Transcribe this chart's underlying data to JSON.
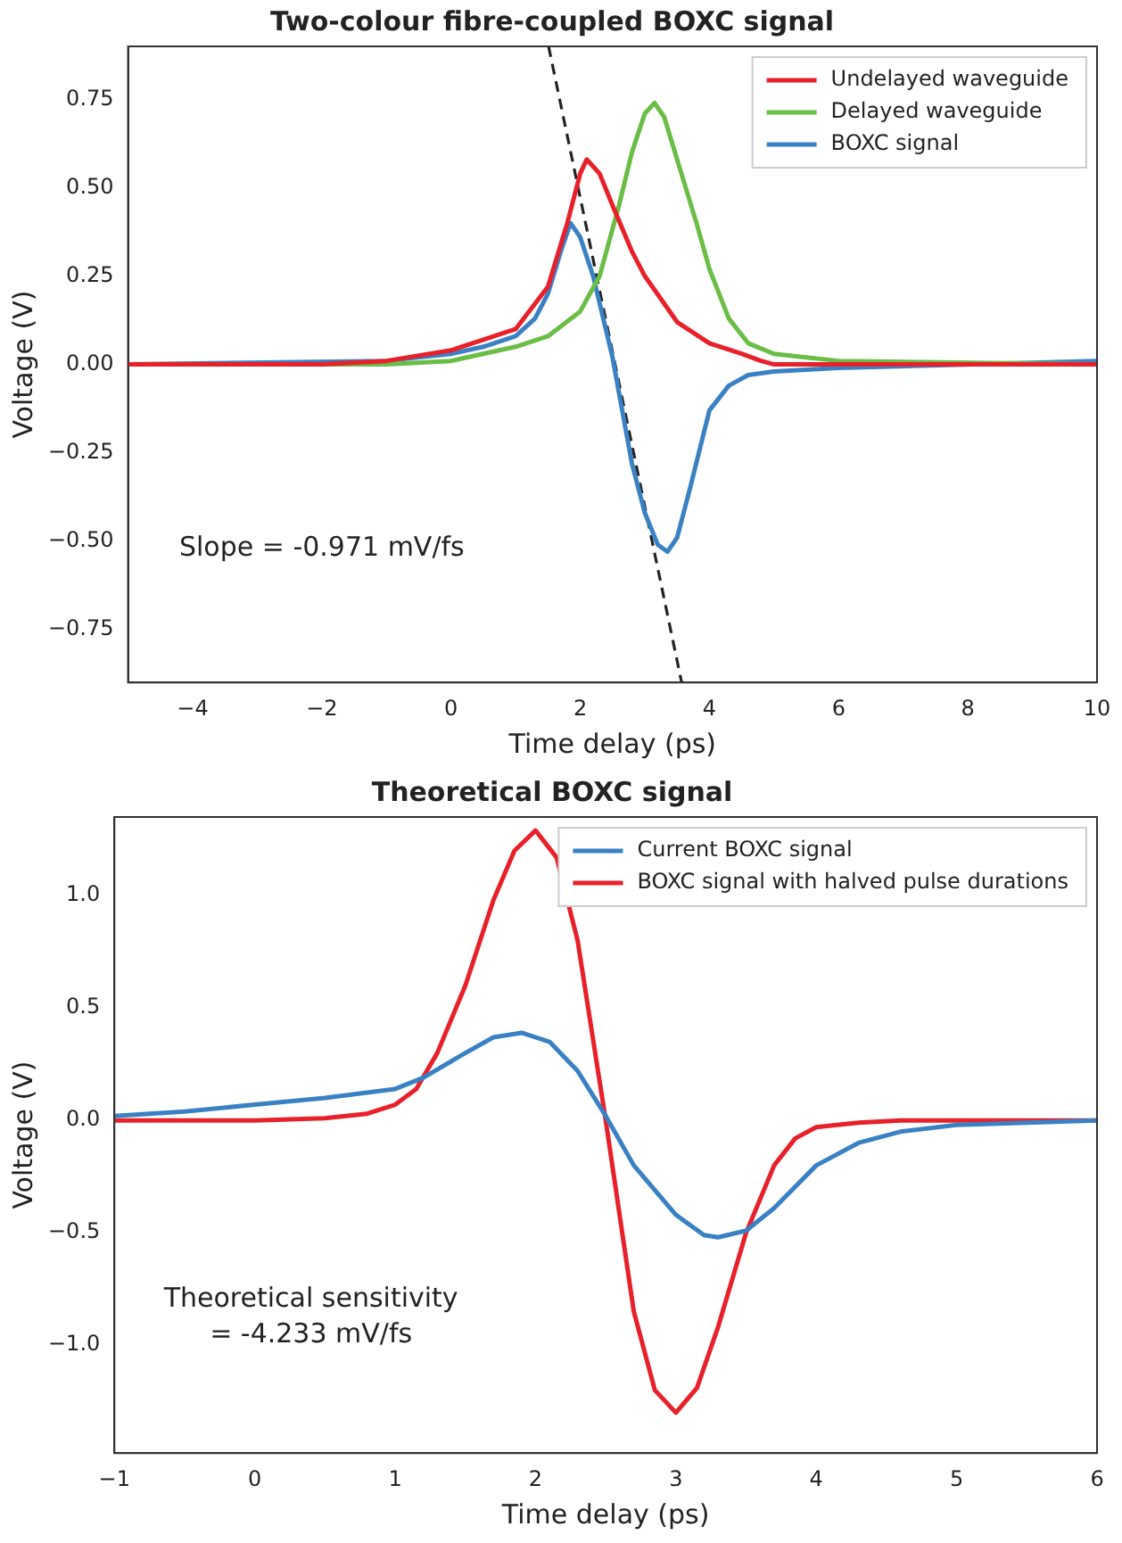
{
  "chart_data": [
    {
      "type": "line",
      "title": "Two-colour fibre-coupled BOXC signal",
      "xlabel": "Time delay (ps)",
      "ylabel": "Voltage (V)",
      "xlim": [
        -5,
        10
      ],
      "ylim": [
        -0.9,
        0.9
      ],
      "xticks": [
        {
          "value": -4,
          "label": "−4"
        },
        {
          "value": -2,
          "label": "−2"
        },
        0,
        2,
        4,
        6,
        8,
        10
      ],
      "yticks": [
        {
          "value": -0.75,
          "label": "−0.75"
        },
        {
          "value": -0.5,
          "label": "−0.50"
        },
        {
          "value": -0.25,
          "label": "−0.25"
        },
        {
          "value": 0,
          "label": "0.00"
        },
        {
          "value": 0.25,
          "label": "0.25"
        },
        {
          "value": 0.5,
          "label": "0.50"
        },
        {
          "value": 0.75,
          "label": "0.75"
        }
      ],
      "grid": false,
      "legend": "top right",
      "marker": "none",
      "annotations": [
        "Slope = -0.971 mV/fs"
      ],
      "series": [
        {
          "name": "Undelayed waveguide",
          "color": "#e8202a",
          "x": [
            -5,
            -2,
            -1,
            0,
            0.5,
            1,
            1.5,
            1.8,
            2,
            2.1,
            2.3,
            2.5,
            2.8,
            3,
            3.5,
            4,
            4.5,
            4.8,
            5,
            6,
            10
          ],
          "values": [
            0,
            0,
            0.01,
            0.04,
            0.07,
            0.1,
            0.22,
            0.4,
            0.54,
            0.58,
            0.54,
            0.45,
            0.32,
            0.25,
            0.12,
            0.06,
            0.03,
            0.01,
            0,
            0,
            0
          ]
        },
        {
          "name": "Delayed waveguide",
          "color": "#6abd45",
          "x": [
            -5,
            -1,
            0,
            1,
            1.5,
            2,
            2.3,
            2.6,
            2.8,
            3,
            3.15,
            3.3,
            3.5,
            3.8,
            4,
            4.3,
            4.6,
            5,
            5.5,
            6,
            10
          ],
          "values": [
            0,
            0,
            0.01,
            0.05,
            0.08,
            0.15,
            0.25,
            0.45,
            0.6,
            0.71,
            0.74,
            0.7,
            0.58,
            0.4,
            0.27,
            0.13,
            0.06,
            0.03,
            0.02,
            0.01,
            0
          ]
        },
        {
          "name": "BOXC signal",
          "color": "#3a81c4",
          "x": [
            -5,
            -1,
            0,
            0.5,
            1,
            1.3,
            1.5,
            1.7,
            1.85,
            2,
            2.2,
            2.5,
            2.8,
            3,
            3.2,
            3.35,
            3.5,
            3.7,
            4,
            4.3,
            4.6,
            5,
            6,
            10
          ],
          "values": [
            0,
            0.01,
            0.03,
            0.05,
            0.08,
            0.13,
            0.2,
            0.32,
            0.4,
            0.36,
            0.25,
            0.02,
            -0.28,
            -0.42,
            -0.51,
            -0.53,
            -0.49,
            -0.35,
            -0.13,
            -0.06,
            -0.03,
            -0.02,
            -0.01,
            0.01
          ]
        },
        {
          "type": "line",
          "color": "#222222",
          "line_style": "dashed",
          "x": [
            1.51,
            3.57
          ],
          "values": [
            0.9,
            -0.9
          ]
        }
      ]
    },
    {
      "type": "line",
      "title": "Theoretical BOXC signal",
      "xlabel": "Time delay (ps)",
      "ylabel": "Voltage (V)",
      "xlim": [
        -1,
        6
      ],
      "ylim": [
        -1.48,
        1.35
      ],
      "xticks": [
        {
          "value": -1,
          "label": "−1"
        },
        0,
        1,
        2,
        3,
        4,
        5,
        6
      ],
      "yticks": [
        {
          "value": -1,
          "label": "−1.0"
        },
        {
          "value": -0.5,
          "label": "−0.5"
        },
        {
          "value": 0,
          "label": "0.0"
        },
        {
          "value": 0.5,
          "label": "0.5"
        },
        {
          "value": 1,
          "label": "1.0"
        }
      ],
      "grid": false,
      "legend": "top right",
      "marker": "none",
      "annotations": [
        "Theoretical sensitivity\n= -4.233 mV/fs"
      ],
      "series": [
        {
          "name": "Current BOXC signal",
          "color": "#3a81c4",
          "x": [
            -1,
            -0.5,
            0,
            0.5,
            1,
            1.2,
            1.5,
            1.7,
            1.9,
            2.1,
            2.3,
            2.5,
            2.7,
            3,
            3.2,
            3.3,
            3.5,
            3.7,
            4,
            4.3,
            4.6,
            5,
            5.5,
            6
          ],
          "values": [
            0.02,
            0.04,
            0.07,
            0.1,
            0.14,
            0.19,
            0.3,
            0.37,
            0.39,
            0.35,
            0.22,
            0.02,
            -0.2,
            -0.42,
            -0.51,
            -0.52,
            -0.49,
            -0.39,
            -0.2,
            -0.1,
            -0.05,
            -0.02,
            -0.01,
            0
          ]
        },
        {
          "name": "BOXC signal with halved pulse durations",
          "color": "#e8202a",
          "x": [
            -1,
            0,
            0.5,
            0.8,
            1,
            1.15,
            1.3,
            1.5,
            1.7,
            1.85,
            2,
            2.15,
            2.3,
            2.5,
            2.7,
            2.85,
            3,
            3.15,
            3.3,
            3.5,
            3.7,
            3.85,
            4,
            4.3,
            4.6,
            6
          ],
          "values": [
            0,
            0,
            0.01,
            0.03,
            0.07,
            0.14,
            0.3,
            0.6,
            0.98,
            1.2,
            1.29,
            1.17,
            0.8,
            0.0,
            -0.85,
            -1.2,
            -1.3,
            -1.19,
            -0.92,
            -0.5,
            -0.2,
            -0.08,
            -0.03,
            -0.01,
            0,
            0
          ]
        }
      ]
    }
  ]
}
